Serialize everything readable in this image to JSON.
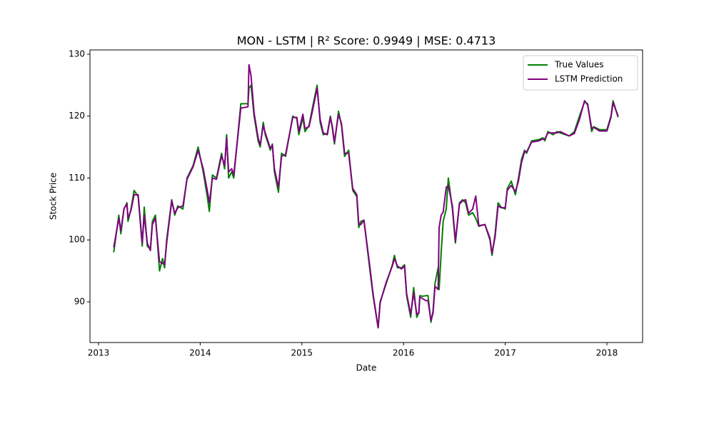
{
  "chart_data": {
    "type": "line",
    "title": "MON - LSTM | R² Score: 0.9949 | MSE: 0.4713",
    "x_label": "Date",
    "y_label": "Stock Price",
    "xlim": [
      2012.916,
      2018.351
    ],
    "ylim": [
      83.43,
      130.69
    ],
    "xticks": [
      2013,
      2014,
      2015,
      2016,
      2017,
      2018
    ],
    "yticks": [
      90,
      100,
      110,
      120,
      130
    ],
    "legend": "upper right",
    "x": [
      2013.15,
      2013.2,
      2013.22,
      2013.25,
      2013.28,
      2013.29,
      2013.32,
      2013.35,
      2013.39,
      2013.43,
      2013.45,
      2013.48,
      2013.51,
      2013.53,
      2013.56,
      2013.6,
      2013.63,
      2013.65,
      2013.67,
      2013.72,
      2013.75,
      2013.78,
      2013.83,
      2013.87,
      2013.93,
      2013.98,
      2014.03,
      2014.07,
      2014.09,
      2014.12,
      2014.16,
      2014.21,
      2014.24,
      2014.26,
      2014.28,
      2014.31,
      2014.33,
      2014.4,
      2014.47,
      2014.48,
      2014.5,
      2014.53,
      2014.57,
      2014.59,
      2014.62,
      2014.64,
      2014.69,
      2014.71,
      2014.73,
      2014.77,
      2014.8,
      2014.84,
      2014.91,
      2014.95,
      2014.97,
      2015.01,
      2015.03,
      2015.07,
      2015.1,
      2015.15,
      2015.18,
      2015.21,
      2015.25,
      2015.28,
      2015.3,
      2015.32,
      2015.36,
      2015.39,
      2015.42,
      2015.46,
      2015.5,
      2015.54,
      2015.56,
      2015.58,
      2015.61,
      2015.67,
      2015.7,
      2015.75,
      2015.77,
      2015.79,
      2015.83,
      2015.86,
      2015.89,
      2015.91,
      2015.94,
      2015.98,
      2016.01,
      2016.03,
      2016.07,
      2016.1,
      2016.13,
      2016.15,
      2016.16,
      2016.19,
      2016.22,
      2016.24,
      2016.27,
      2016.29,
      2016.31,
      2016.34,
      2016.35,
      2016.37,
      2016.39,
      2016.42,
      2016.44,
      2016.48,
      2016.51,
      2016.55,
      2016.58,
      2016.61,
      2016.64,
      2016.68,
      2016.71,
      2016.74,
      2016.8,
      2016.85,
      2016.87,
      2016.9,
      2016.93,
      2016.96,
      2017.0,
      2017.02,
      2017.06,
      2017.1,
      2017.13,
      2017.16,
      2017.19,
      2017.21,
      2017.26,
      2017.33,
      2017.37,
      2017.39,
      2017.42,
      2017.47,
      2017.51,
      2017.54,
      2017.63,
      2017.68,
      2017.73,
      2017.78,
      2017.81,
      2017.85,
      2017.87,
      2017.93,
      2018.0,
      2018.04,
      2018.06,
      2018.11
    ],
    "series": [
      {
        "name": "True Values",
        "color": "#008000",
        "values": [
          98,
          104,
          101,
          105,
          106,
          103,
          105,
          108,
          107,
          99,
          105.3,
          99,
          98.5,
          103,
          104,
          95,
          97,
          95.5,
          100,
          106.5,
          104,
          105.5,
          105,
          110,
          112,
          115,
          111,
          107,
          104.6,
          110.5,
          110,
          114,
          111.5,
          117,
          110,
          111,
          110,
          122,
          122,
          124.5,
          125,
          120,
          116,
          115,
          119,
          117,
          114.5,
          115.5,
          111,
          107.7,
          114,
          113.5,
          120,
          119.6,
          117,
          119.8,
          117.5,
          118.5,
          121,
          125,
          119,
          117,
          117.2,
          120,
          118,
          115.5,
          120.8,
          118.5,
          113.5,
          114.5,
          108,
          107,
          102,
          103,
          103.2,
          95,
          91,
          85.8,
          90,
          91,
          93,
          94.5,
          96,
          97.5,
          95.5,
          95.5,
          96,
          91,
          87.5,
          92.3,
          87.5,
          88.3,
          91,
          90.9,
          91,
          91,
          86.7,
          88.5,
          93,
          95.5,
          92,
          98,
          103,
          105,
          110,
          105,
          99.5,
          106,
          106.5,
          106,
          104,
          104.4,
          103.5,
          102.2,
          102.5,
          100,
          97.5,
          101,
          106,
          105.3,
          105,
          108.3,
          109.5,
          107.3,
          110,
          113,
          114.5,
          114,
          116,
          116.2,
          116.5,
          116,
          117.5,
          117,
          117.5,
          117.3,
          116.8,
          117.5,
          120,
          122.3,
          122,
          117.5,
          118.3,
          117.8,
          117.8,
          120,
          122.5,
          119.8
        ]
      },
      {
        "name": "LSTM Prediction",
        "color": "#800080",
        "values": [
          98.8,
          103.5,
          101.5,
          105,
          105.8,
          103.5,
          104.8,
          107.3,
          107.3,
          99.5,
          104,
          99.5,
          98.3,
          102.5,
          103.5,
          96.5,
          96.2,
          96,
          99.5,
          106.3,
          104.3,
          105.2,
          105.5,
          109.8,
          111.8,
          114.5,
          111.5,
          108,
          106,
          110,
          109.8,
          113.6,
          112,
          116.5,
          111,
          111.5,
          110.5,
          121.3,
          121.5,
          128.3,
          126.5,
          120.5,
          116.5,
          115.3,
          118.5,
          117.3,
          114.8,
          115.3,
          111.5,
          108.5,
          113.5,
          113.8,
          119.8,
          119.8,
          117.5,
          120.3,
          118,
          118.3,
          120.5,
          124.5,
          119.5,
          117.3,
          117,
          119.8,
          118.3,
          115.8,
          120.3,
          118.8,
          114,
          114,
          108.3,
          107.3,
          102.5,
          102.5,
          103.2,
          95.5,
          91.3,
          85.8,
          89.8,
          91,
          93.2,
          94.5,
          95.8,
          97,
          95.8,
          95.3,
          95.8,
          91.3,
          88,
          91.5,
          88,
          88.2,
          90.8,
          90.5,
          90.2,
          90.2,
          87,
          88.2,
          92.5,
          92,
          102,
          104,
          104.5,
          108.5,
          108.8,
          105.5,
          99.8,
          105.8,
          106.3,
          106.5,
          104.3,
          105,
          107.1,
          102.3,
          102.5,
          100.3,
          97.8,
          100.5,
          105.5,
          105.2,
          105.2,
          108,
          108.8,
          107.8,
          109.5,
          112.5,
          114.3,
          114.2,
          115.8,
          116,
          116.3,
          116.3,
          117.3,
          117.3,
          117.3,
          117.5,
          116.8,
          117.2,
          119.5,
          122.5,
          121.8,
          118,
          118.2,
          117.6,
          117.6,
          119.8,
          122.2,
          120
        ]
      }
    ]
  }
}
